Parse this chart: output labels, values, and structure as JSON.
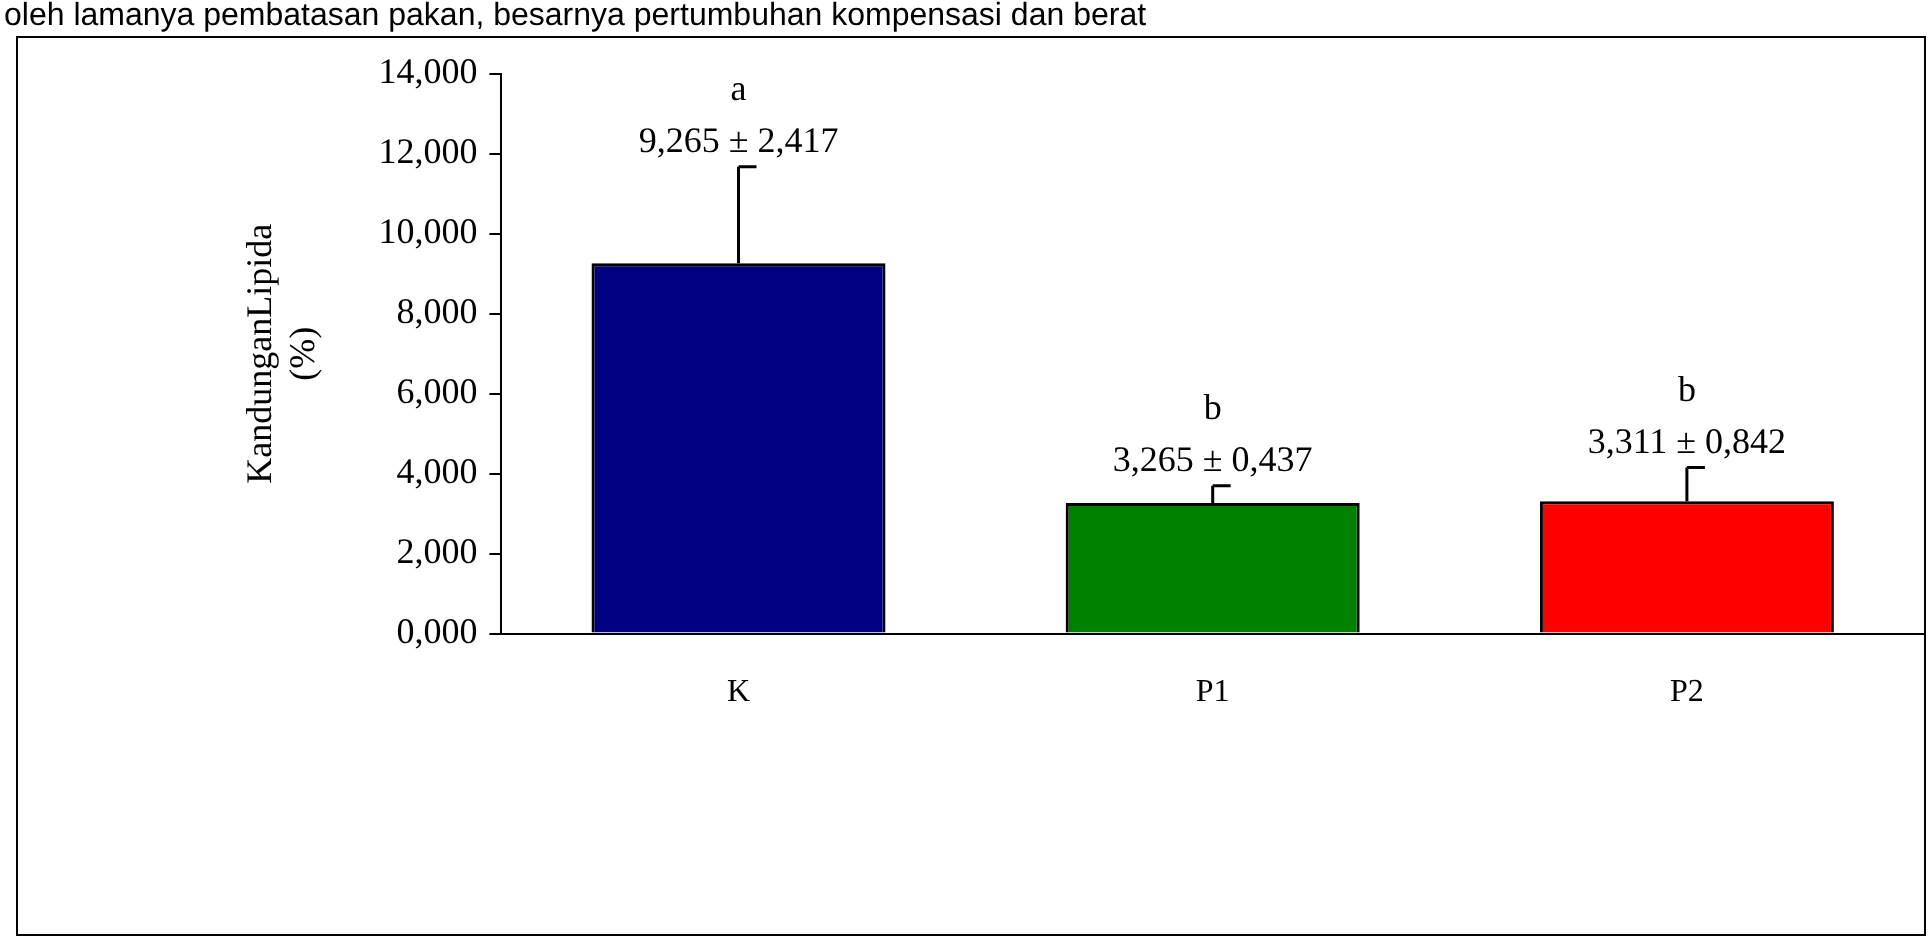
{
  "chart_data": {
    "type": "bar",
    "subtitle": "oleh lamanya pembatasan pakan, besarnya pertumbuhan kompensasi dan berat",
    "ylabel": "KandunganLipida (%)",
    "categories": [
      "K",
      "P1",
      "P2"
    ],
    "values": [
      9.265,
      3.265,
      3.311
    ],
    "colors": [
      "#000080",
      "#008000",
      "#ff0000"
    ],
    "errors": [
      [
        9.265,
        11.682
      ],
      [
        3.265,
        3.702
      ],
      [
        3.311,
        4.153
      ]
    ],
    "value_labels": [
      "9,265 ± 2,417",
      "3,265 ± 0,437",
      "3,311 ± 0,842"
    ],
    "annotations": [
      "a",
      "b",
      "b"
    ],
    "ylim": [
      0,
      14
    ],
    "yticks": [
      {
        "value": 0,
        "label": "0,000"
      },
      {
        "value": 2,
        "label": "2,000"
      },
      {
        "value": 4,
        "label": "4,000"
      },
      {
        "value": 6,
        "label": "6,000"
      },
      {
        "value": 8,
        "label": "8,000"
      },
      {
        "value": 10,
        "label": "10,000"
      },
      {
        "value": 12,
        "label": "12,000"
      },
      {
        "value": 14,
        "label": "14,000"
      }
    ],
    "grid": false,
    "legend": false
  }
}
